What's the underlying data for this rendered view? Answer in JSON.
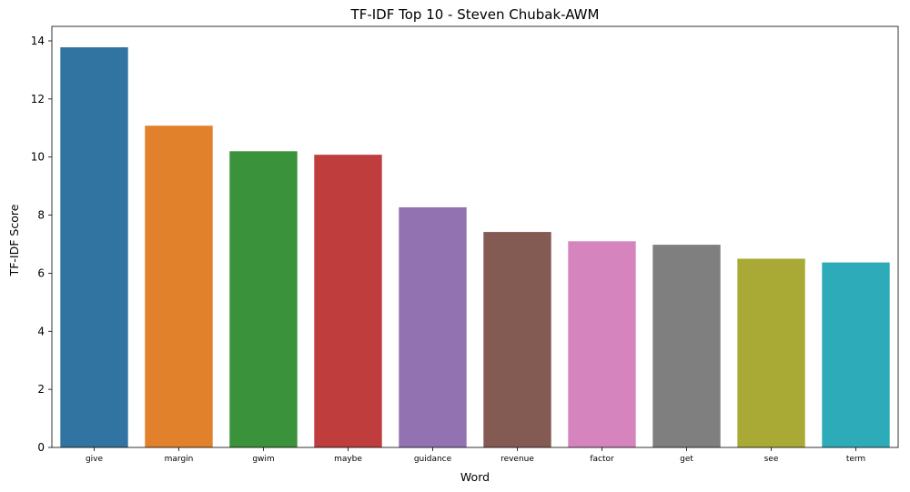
{
  "chart_data": {
    "type": "bar",
    "title": "TF-IDF Top 10 - Steven Chubak-AWM",
    "xlabel": "Word",
    "ylabel": "TF-IDF Score",
    "categories": [
      "give",
      "margin",
      "gwim",
      "maybe",
      "guidance",
      "revenue",
      "factor",
      "get",
      "see",
      "term"
    ],
    "values": [
      13.78,
      11.08,
      10.2,
      10.08,
      8.27,
      7.42,
      7.1,
      6.98,
      6.5,
      6.37
    ],
    "colors": [
      "#3274a1",
      "#e1812c",
      "#3a923a",
      "#c03d3e",
      "#9372b2",
      "#845b53",
      "#d684bd",
      "#7f7f7f",
      "#a9aa35",
      "#2eabb8"
    ],
    "ylim": [
      0,
      14.5
    ],
    "yticks": [
      0,
      2,
      4,
      6,
      8,
      10,
      12,
      14
    ],
    "grid": false,
    "legend": "none"
  }
}
